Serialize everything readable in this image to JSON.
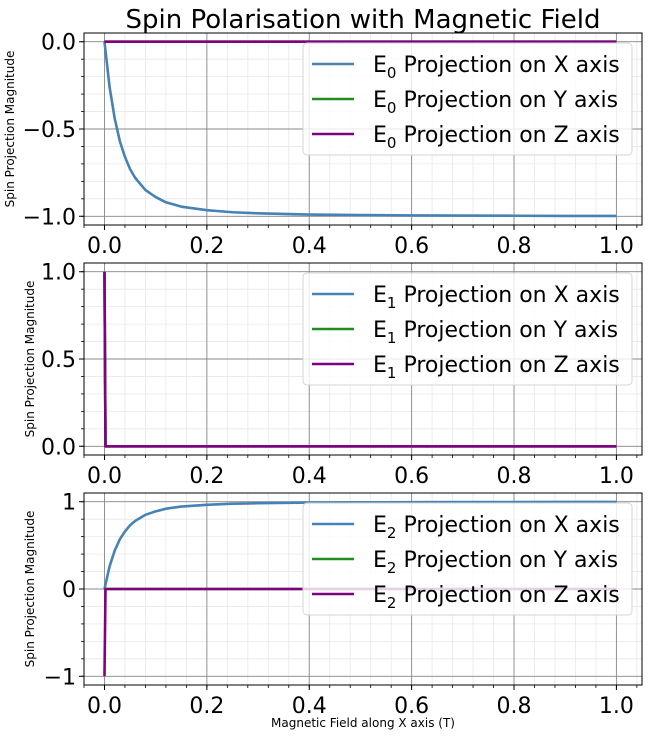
{
  "chart_data": [
    {
      "type": "line",
      "title": "Spin Polarisation with Magnetic Field",
      "xlabel": "",
      "ylabel": "Spin Projection Magnitude",
      "xlim": [
        -0.04,
        1.05
      ],
      "ylim": [
        -1.05,
        0.05
      ],
      "xticks": [
        0.0,
        0.2,
        0.4,
        0.6,
        0.8,
        1.0
      ],
      "xtick_labels": [
        "0.0",
        "0.2",
        "0.4",
        "0.6",
        "0.8",
        "1.0"
      ],
      "yticks": [
        -1.0,
        -0.5,
        0.0
      ],
      "ytick_labels": [
        "−1.0",
        "−0.5",
        "0.0"
      ],
      "grid": true,
      "legend_position": "top-right",
      "series": [
        {
          "name_base": "E",
          "name_sub": "0",
          "name_rest": " Projection on X axis",
          "color": "#4682b4",
          "x": [
            0,
            0.01,
            0.02,
            0.03,
            0.04,
            0.05,
            0.06,
            0.08,
            0.1,
            0.12,
            0.15,
            0.2,
            0.25,
            0.3,
            0.4,
            0.5,
            0.6,
            0.7,
            0.8,
            0.9,
            1.0
          ],
          "y": [
            0,
            -0.26,
            -0.44,
            -0.57,
            -0.66,
            -0.73,
            -0.78,
            -0.85,
            -0.89,
            -0.92,
            -0.945,
            -0.965,
            -0.977,
            -0.983,
            -0.99,
            -0.993,
            -0.995,
            -0.996,
            -0.997,
            -0.998,
            -0.998
          ]
        },
        {
          "name_base": "E",
          "name_sub": "0",
          "name_rest": " Projection on Y axis",
          "color": "#228b22",
          "x": [
            0,
            1.0
          ],
          "y": [
            0,
            0
          ]
        },
        {
          "name_base": "E",
          "name_sub": "0",
          "name_rest": " Projection on Z axis",
          "color": "#800080",
          "x": [
            0,
            1.0
          ],
          "y": [
            0,
            0
          ]
        }
      ]
    },
    {
      "type": "line",
      "xlabel": "",
      "ylabel": "Spin Projection Magnitude",
      "xlim": [
        -0.04,
        1.05
      ],
      "ylim": [
        -0.05,
        1.05
      ],
      "xticks": [
        0.0,
        0.2,
        0.4,
        0.6,
        0.8,
        1.0
      ],
      "xtick_labels": [
        "0.0",
        "0.2",
        "0.4",
        "0.6",
        "0.8",
        "1.0"
      ],
      "yticks": [
        0.0,
        0.5,
        1.0
      ],
      "ytick_labels": [
        "0.0",
        "0.5",
        "1.0"
      ],
      "grid": true,
      "legend_position": "top-right",
      "series": [
        {
          "name_base": "E",
          "name_sub": "1",
          "name_rest": " Projection on X axis",
          "color": "#4682b4",
          "x": [
            0,
            0.002,
            1.0
          ],
          "y": [
            1.0,
            0,
            0
          ]
        },
        {
          "name_base": "E",
          "name_sub": "1",
          "name_rest": " Projection on Y axis",
          "color": "#228b22",
          "x": [
            0,
            0.002,
            1.0
          ],
          "y": [
            1.0,
            0,
            0
          ]
        },
        {
          "name_base": "E",
          "name_sub": "1",
          "name_rest": " Projection on Z axis",
          "color": "#800080",
          "x": [
            0,
            0.002,
            1.0
          ],
          "y": [
            1.0,
            0,
            0
          ]
        }
      ]
    },
    {
      "type": "line",
      "xlabel": "Magnetic Field along X axis (T)",
      "ylabel": "Spin Projection Magnitude",
      "xlim": [
        -0.04,
        1.05
      ],
      "ylim": [
        -1.1,
        1.1
      ],
      "xticks": [
        0.0,
        0.2,
        0.4,
        0.6,
        0.8,
        1.0
      ],
      "xtick_labels": [
        "0.0",
        "0.2",
        "0.4",
        "0.6",
        "0.8",
        "1.0"
      ],
      "yticks": [
        -1,
        0,
        1
      ],
      "ytick_labels": [
        "−1",
        "0",
        "1"
      ],
      "grid": true,
      "legend_position": "top-right",
      "series": [
        {
          "name_base": "E",
          "name_sub": "2",
          "name_rest": " Projection on X axis",
          "color": "#4682b4",
          "x": [
            0,
            0.01,
            0.02,
            0.03,
            0.04,
            0.05,
            0.06,
            0.08,
            0.1,
            0.12,
            0.15,
            0.2,
            0.25,
            0.3,
            0.4,
            0.5,
            0.6,
            0.7,
            0.8,
            0.9,
            1.0
          ],
          "y": [
            0,
            0.26,
            0.44,
            0.57,
            0.66,
            0.73,
            0.78,
            0.85,
            0.89,
            0.92,
            0.945,
            0.965,
            0.977,
            0.983,
            0.99,
            0.993,
            0.995,
            0.996,
            0.997,
            0.998,
            0.998
          ]
        },
        {
          "name_base": "E",
          "name_sub": "2",
          "name_rest": " Projection on Y axis",
          "color": "#228b22",
          "x": [
            0,
            1.0
          ],
          "y": [
            0,
            0
          ]
        },
        {
          "name_base": "E",
          "name_sub": "2",
          "name_rest": " Projection on Z axis",
          "color": "#800080",
          "x": [
            0,
            0.002,
            1.0
          ],
          "y": [
            -1.0,
            0,
            0
          ]
        }
      ]
    }
  ]
}
